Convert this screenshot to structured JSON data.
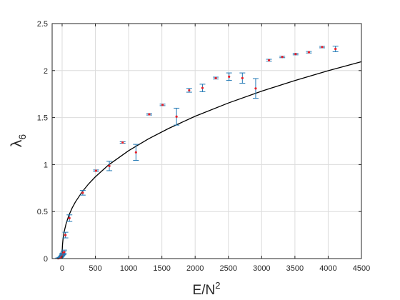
{
  "chart_data": {
    "type": "scatter",
    "title": "",
    "xlabel": {
      "base": "E/N",
      "sup": "2"
    },
    "ylabel": {
      "base": "λ",
      "sub": "6"
    },
    "xlim": [
      -150,
      4500
    ],
    "ylim": [
      0,
      2.5
    ],
    "xticks": [
      0,
      500,
      1000,
      1500,
      2000,
      2500,
      3000,
      3500,
      4000,
      4500
    ],
    "yticks": [
      0,
      0.5,
      1,
      1.5,
      2,
      2.5
    ],
    "xtick_labels": [
      "0",
      "500",
      "1000",
      "1500",
      "2000",
      "2500",
      "3000",
      "3500",
      "4000",
      "4500"
    ],
    "ytick_labels": [
      "0",
      "0.5",
      "1",
      "1.5",
      "2",
      "2.5"
    ],
    "grid": true,
    "legend": "none",
    "colors": {
      "errorbar": "#1f77b4",
      "marker": "#e8202a",
      "curve": "#000000",
      "grid": "#dcdcdc",
      "axis": "#262626"
    },
    "series": [
      {
        "kind": "errorbar",
        "points": [
          {
            "x": -60,
            "y": 0.003,
            "err": 0.003
          },
          {
            "x": -45,
            "y": 0.006,
            "err": 0.003
          },
          {
            "x": -30,
            "y": 0.01,
            "err": 0.004
          },
          {
            "x": -20,
            "y": 0.016,
            "err": 0.004
          },
          {
            "x": -12,
            "y": 0.022,
            "err": 0.005
          },
          {
            "x": -6,
            "y": 0.03,
            "err": 0.006
          },
          {
            "x": 0,
            "y": 0.038,
            "err": 0.008
          },
          {
            "x": 5,
            "y": 0.045,
            "err": 0.01
          },
          {
            "x": 10,
            "y": 0.05,
            "err": 0.01
          },
          {
            "x": 20,
            "y": 0.06,
            "err": 0.015
          },
          {
            "x": 30,
            "y": 0.07,
            "err": 0.02
          },
          {
            "x": 50,
            "y": 0.25,
            "err": 0.03
          },
          {
            "x": 110,
            "y": 0.43,
            "err": 0.035
          },
          {
            "x": 310,
            "y": 0.7,
            "err": 0.025
          },
          {
            "x": 510,
            "y": 0.935,
            "err": 0.008
          },
          {
            "x": 710,
            "y": 0.985,
            "err": 0.05
          },
          {
            "x": 910,
            "y": 1.235,
            "err": 0.008
          },
          {
            "x": 1110,
            "y": 1.13,
            "err": 0.085
          },
          {
            "x": 1310,
            "y": 1.535,
            "err": 0.008
          },
          {
            "x": 1510,
            "y": 1.635,
            "err": 0.008
          },
          {
            "x": 1720,
            "y": 1.51,
            "err": 0.09
          },
          {
            "x": 1910,
            "y": 1.79,
            "err": 0.02
          },
          {
            "x": 2110,
            "y": 1.815,
            "err": 0.04
          },
          {
            "x": 2310,
            "y": 1.92,
            "err": 0.01
          },
          {
            "x": 2510,
            "y": 1.935,
            "err": 0.04
          },
          {
            "x": 2710,
            "y": 1.92,
            "err": 0.055
          },
          {
            "x": 2910,
            "y": 1.81,
            "err": 0.105
          },
          {
            "x": 3110,
            "y": 2.11,
            "err": 0.01
          },
          {
            "x": 3310,
            "y": 2.145,
            "err": 0.008
          },
          {
            "x": 3510,
            "y": 2.175,
            "err": 0.008
          },
          {
            "x": 3710,
            "y": 2.195,
            "err": 0.008
          },
          {
            "x": 3910,
            "y": 2.25,
            "err": 0.008
          },
          {
            "x": 4110,
            "y": 2.23,
            "err": 0.03
          }
        ]
      },
      {
        "kind": "curve",
        "description_formula": "y = 1.1475 * (x/1000)^0.4 for x >= 0",
        "points": [
          {
            "x": 0,
            "y": 0
          },
          {
            "x": 0.2,
            "y": 0.038
          },
          {
            "x": 1,
            "y": 0.072
          },
          {
            "x": 3,
            "y": 0.112
          },
          {
            "x": 7,
            "y": 0.157
          },
          {
            "x": 15,
            "y": 0.214
          },
          {
            "x": 30,
            "y": 0.283
          },
          {
            "x": 60,
            "y": 0.372
          },
          {
            "x": 100,
            "y": 0.457
          },
          {
            "x": 150,
            "y": 0.537
          },
          {
            "x": 200,
            "y": 0.603
          },
          {
            "x": 300,
            "y": 0.709
          },
          {
            "x": 400,
            "y": 0.796
          },
          {
            "x": 500,
            "y": 0.87
          },
          {
            "x": 700,
            "y": 0.997
          },
          {
            "x": 1000,
            "y": 1.148
          },
          {
            "x": 1300,
            "y": 1.274
          },
          {
            "x": 1600,
            "y": 1.384
          },
          {
            "x": 2000,
            "y": 1.514
          },
          {
            "x": 2500,
            "y": 1.655
          },
          {
            "x": 3000,
            "y": 1.781
          },
          {
            "x": 3500,
            "y": 1.894
          },
          {
            "x": 4000,
            "y": 1.998
          },
          {
            "x": 4500,
            "y": 2.094
          }
        ]
      }
    ]
  }
}
